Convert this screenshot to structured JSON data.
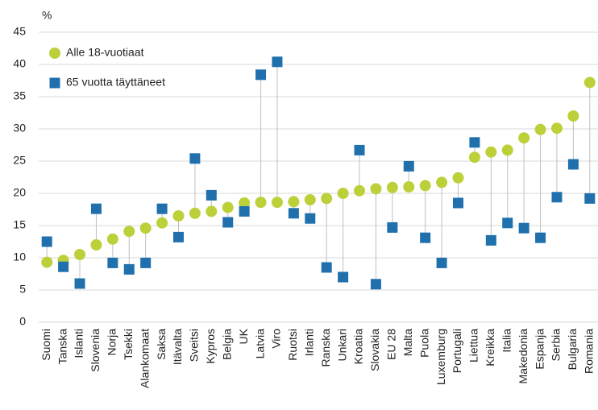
{
  "chart_data": {
    "type": "dotplot",
    "y_label": "%",
    "categories": [
      "Suomi",
      "Tanska",
      "Islanti",
      "Slovenia",
      "Norja",
      "Tsekki",
      "Alankomaat",
      "Saksa",
      "Itävalta",
      "Sveitsi",
      "Kypros",
      "Belgia",
      "UK",
      "Latvia",
      "Viro",
      "Ruotsi",
      "Irlanti",
      "Ranska",
      "Unkari",
      "Kroatia",
      "Slovakia",
      "EU 28",
      "Malta",
      "Puola",
      "Luxemburg",
      "Portugali",
      "Liettua",
      "Kreikka",
      "Italia",
      "Makedonia",
      "Espanja",
      "Serbia",
      "Bulgaria",
      "Romania"
    ],
    "series": [
      {
        "name": "Alle 18-vuotiaat",
        "color": "#bdd03a",
        "marker": "circle",
        "values": [
          9.3,
          9.6,
          10.5,
          12.0,
          12.9,
          14.1,
          14.6,
          15.4,
          16.5,
          16.9,
          17.2,
          17.8,
          18.5,
          18.6,
          18.6,
          18.7,
          19.0,
          19.2,
          20.0,
          20.4,
          20.7,
          20.9,
          21.0,
          21.2,
          21.7,
          22.4,
          25.6,
          26.4,
          26.7,
          28.6,
          29.9,
          30.1,
          32.0,
          37.2
        ]
      },
      {
        "name": "65 vuotta täyttäneet",
        "color": "#1f70ad",
        "marker": "square",
        "values": [
          12.5,
          8.6,
          6.0,
          17.6,
          9.2,
          8.2,
          9.2,
          17.6,
          13.2,
          25.4,
          19.7,
          15.5,
          17.2,
          38.4,
          40.4,
          16.9,
          16.1,
          8.5,
          7.0,
          26.7,
          5.9,
          14.7,
          24.2,
          13.1,
          9.2,
          18.5,
          27.9,
          12.7,
          15.4,
          14.6,
          13.1,
          19.4,
          24.5,
          19.2
        ]
      }
    ],
    "ylim": [
      0,
      45
    ],
    "yticks": [
      0,
      5,
      10,
      15,
      20,
      25,
      30,
      35,
      40,
      45
    ],
    "grid": true,
    "legend": "top-left"
  }
}
